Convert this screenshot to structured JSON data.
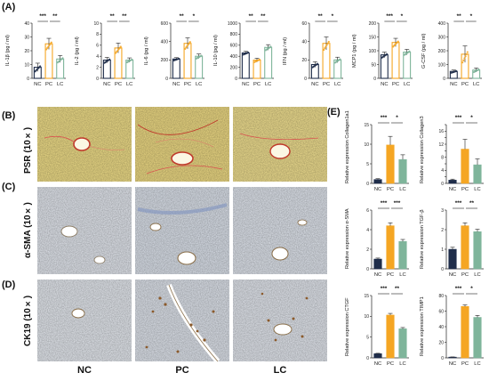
{
  "panel_labels": {
    "a": "(A)",
    "b": "(B)",
    "c": "(C)",
    "d": "(D)",
    "e": "(E)"
  },
  "row_labels": {
    "psr": "PSR (10×)",
    "sma": "α-SMA (10×)",
    "ck19": "CK19 (10×)"
  },
  "group_labels": [
    "NC",
    "PC",
    "LC"
  ],
  "colors": {
    "nc": "#1f2d4a",
    "pc": "#f5a623",
    "lc": "#7fb59b"
  },
  "chart_data": [
    {
      "type": "bar",
      "panel": "A",
      "ylabel": "IL-1β (pg / ml)",
      "categories": [
        "NC",
        "PC",
        "LC"
      ],
      "values": [
        8,
        25,
        14
      ],
      "errors": [
        3,
        4,
        2.5
      ],
      "ylim": [
        0,
        40
      ],
      "yticks": [
        0,
        10,
        20,
        30,
        40
      ],
      "sig": [
        {
          "pair": [
            0,
            1
          ],
          "label": "***"
        },
        {
          "pair": [
            1,
            2
          ],
          "label": "**"
        }
      ]
    },
    {
      "type": "bar",
      "panel": "A",
      "ylabel": "IL-2 (pg / ml)",
      "categories": [
        "NC",
        "PC",
        "LC"
      ],
      "values": [
        3.3,
        5.5,
        3.3
      ],
      "errors": [
        0.5,
        0.9,
        0.4
      ],
      "ylim": [
        0,
        10
      ],
      "yticks": [
        0,
        2,
        4,
        6,
        8,
        10
      ],
      "sig": [
        {
          "pair": [
            0,
            1
          ],
          "label": "**"
        },
        {
          "pair": [
            1,
            2
          ],
          "label": "**"
        }
      ]
    },
    {
      "type": "bar",
      "panel": "A",
      "ylabel": "IL-6 (pg / ml)",
      "categories": [
        "NC",
        "PC",
        "LC"
      ],
      "values": [
        210,
        380,
        240
      ],
      "errors": [
        15,
        60,
        25
      ],
      "ylim": [
        0,
        600
      ],
      "yticks": [
        0,
        200,
        400,
        600
      ],
      "sig": [
        {
          "pair": [
            0,
            1
          ],
          "label": "**"
        },
        {
          "pair": [
            1,
            2
          ],
          "label": "*"
        }
      ]
    },
    {
      "type": "bar",
      "panel": "A",
      "ylabel": "IL-10 (pg / ml)",
      "categories": [
        "NC",
        "PC",
        "LC"
      ],
      "values": [
        460,
        330,
        560
      ],
      "errors": [
        30,
        35,
        50
      ],
      "ylim": [
        0,
        1000
      ],
      "yticks": [
        0,
        200,
        400,
        600,
        800,
        1000
      ],
      "sig": [
        {
          "pair": [
            0,
            1
          ],
          "label": "**"
        },
        {
          "pair": [
            1,
            2
          ],
          "label": "**"
        }
      ]
    },
    {
      "type": "bar",
      "panel": "A",
      "ylabel": "IFN (pg / ml)",
      "categories": [
        "NC",
        "PC",
        "LC"
      ],
      "values": [
        15,
        38,
        20
      ],
      "errors": [
        3,
        7,
        3
      ],
      "ylim": [
        0,
        60
      ],
      "yticks": [
        0,
        20,
        40,
        60
      ],
      "sig": [
        {
          "pair": [
            0,
            1
          ],
          "label": "**"
        },
        {
          "pair": [
            1,
            2
          ],
          "label": "*"
        }
      ]
    },
    {
      "type": "bar",
      "panel": "A",
      "ylabel": "MCP1 (pg / ml)",
      "categories": [
        "NC",
        "PC",
        "LC"
      ],
      "values": [
        85,
        130,
        95
      ],
      "errors": [
        10,
        15,
        10
      ],
      "ylim": [
        0,
        200
      ],
      "yticks": [
        0,
        50,
        100,
        150,
        200
      ],
      "sig": [
        {
          "pair": [
            0,
            1
          ],
          "label": "***"
        },
        {
          "pair": [
            1,
            2
          ],
          "label": "*"
        }
      ]
    },
    {
      "type": "bar",
      "panel": "A",
      "ylabel": "G-CSF (pg / ml)",
      "categories": [
        "NC",
        "PC",
        "LC"
      ],
      "values": [
        50,
        175,
        60
      ],
      "errors": [
        10,
        60,
        15
      ],
      "ylim": [
        0,
        400
      ],
      "yticks": [
        0,
        100,
        200,
        300,
        400
      ],
      "sig": [
        {
          "pair": [
            0,
            1
          ],
          "label": "**"
        },
        {
          "pair": [
            1,
            2
          ],
          "label": "*"
        }
      ]
    },
    {
      "type": "bar",
      "panel": "E",
      "ylabel": "Relative expression Collagen1a1",
      "categories": [
        "NC",
        "PC",
        "LC"
      ],
      "values": [
        1,
        9.8,
        6.1
      ],
      "errors": [
        0.2,
        2.2,
        1.2
      ],
      "ylim": [
        0,
        15
      ],
      "yticks": [
        0,
        5,
        10,
        15
      ],
      "sig": [
        {
          "pair": [
            0,
            1
          ],
          "label": "***"
        },
        {
          "pair": [
            1,
            2
          ],
          "label": "*"
        }
      ]
    },
    {
      "type": "bar",
      "panel": "E",
      "ylabel": "Relative expression Collagen3",
      "categories": [
        "NC",
        "PC",
        "LC"
      ],
      "values": [
        1,
        10.5,
        5.7
      ],
      "errors": [
        0.3,
        3,
        1.8
      ],
      "ylim": [
        0,
        18
      ],
      "yticks": [
        0,
        2,
        4,
        6,
        8,
        10,
        12,
        14,
        16,
        18
      ],
      "sig": [
        {
          "pair": [
            0,
            1
          ],
          "label": "***"
        },
        {
          "pair": [
            1,
            2
          ],
          "label": "*"
        }
      ]
    },
    {
      "type": "bar",
      "panel": "E",
      "ylabel": "Relative expression α-SMA",
      "categories": [
        "NC",
        "PC",
        "LC"
      ],
      "values": [
        1,
        4.4,
        2.8
      ],
      "errors": [
        0.1,
        0.3,
        0.2
      ],
      "ylim": [
        0,
        6
      ],
      "yticks": [
        0,
        2,
        4,
        6
      ],
      "sig": [
        {
          "pair": [
            0,
            1
          ],
          "label": "***"
        },
        {
          "pair": [
            1,
            2
          ],
          "label": "***"
        }
      ]
    },
    {
      "type": "bar",
      "panel": "E",
      "ylabel": "Relative expression TGF-β",
      "categories": [
        "NC",
        "PC",
        "LC"
      ],
      "values": [
        1,
        2.2,
        1.9
      ],
      "errors": [
        0.1,
        0.15,
        0.12
      ],
      "ylim": [
        0,
        3
      ],
      "yticks": [
        0,
        1,
        2,
        3
      ],
      "sig": [
        {
          "pair": [
            0,
            1
          ],
          "label": "***"
        },
        {
          "pair": [
            1,
            2
          ],
          "label": "**"
        }
      ]
    },
    {
      "type": "bar",
      "panel": "E",
      "ylabel": "Relative expression CTGF",
      "categories": [
        "NC",
        "PC",
        "LC"
      ],
      "values": [
        1,
        10.3,
        7
      ],
      "errors": [
        0.1,
        0.4,
        0.3
      ],
      "ylim": [
        0,
        15
      ],
      "yticks": [
        0,
        5,
        10,
        15
      ],
      "sig": [
        {
          "pair": [
            0,
            1
          ],
          "label": "***"
        },
        {
          "pair": [
            1,
            2
          ],
          "label": "**"
        }
      ]
    },
    {
      "type": "bar",
      "panel": "E",
      "ylabel": "Relative expression TIMP1",
      "categories": [
        "NC",
        "PC",
        "LC"
      ],
      "values": [
        1,
        66,
        52
      ],
      "errors": [
        0.2,
        2,
        2.5
      ],
      "ylim": [
        0,
        80
      ],
      "yticks": [
        0,
        20,
        40,
        60,
        80
      ],
      "sig": [
        {
          "pair": [
            0,
            1
          ],
          "label": "***"
        },
        {
          "pair": [
            1,
            2
          ],
          "label": "*"
        }
      ]
    }
  ]
}
